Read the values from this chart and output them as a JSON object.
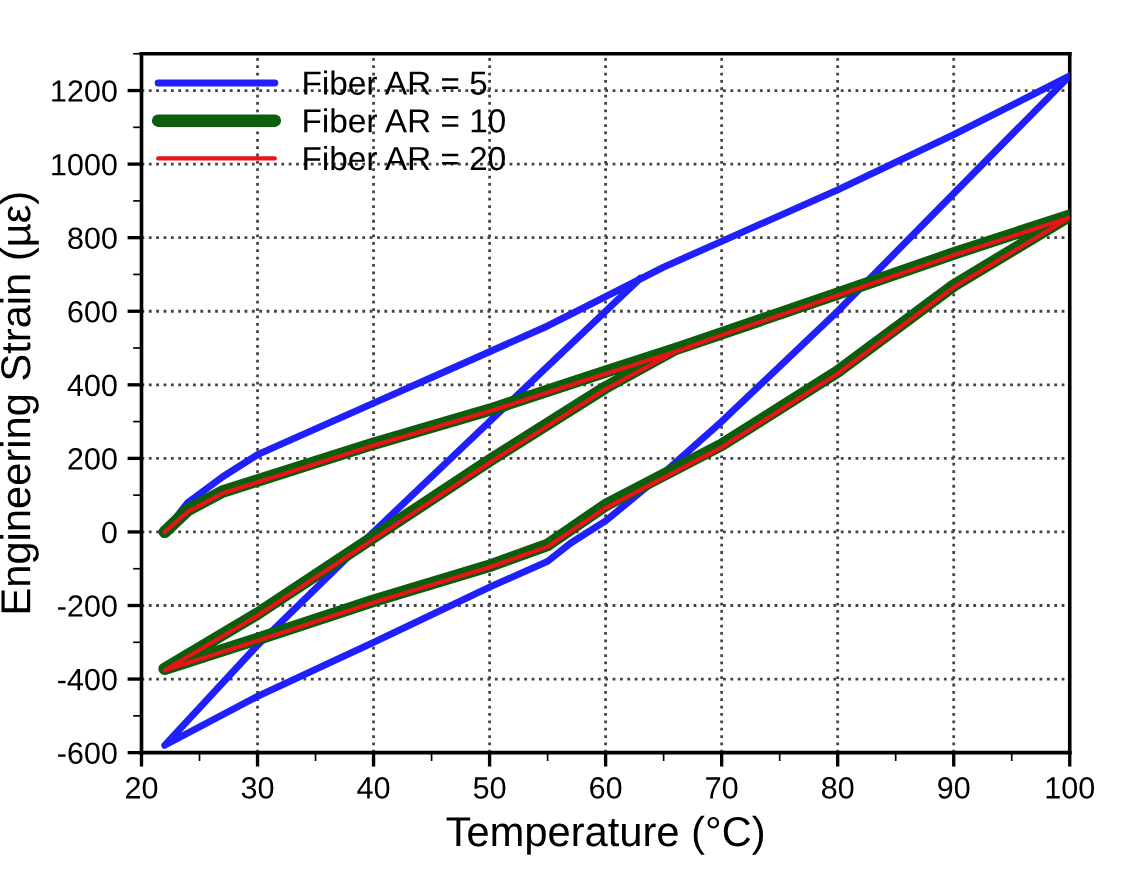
{
  "chart_data": {
    "type": "line",
    "xlabel": "Temperature (°C)",
    "ylabel": "Engineering Strain (µε)",
    "xlim": [
      20,
      100
    ],
    "ylim": [
      -600,
      1300
    ],
    "xticks": [
      20,
      30,
      40,
      50,
      60,
      70,
      80,
      90,
      100
    ],
    "yticks": [
      -600,
      -400,
      -200,
      0,
      200,
      400,
      600,
      800,
      1000,
      1200
    ],
    "grid": true,
    "legend": "top left",
    "marker": "none",
    "line_style": "solid",
    "series": [
      {
        "name": "Fiber AR = 5",
        "color": "#1f1fff",
        "x": [
          22,
          24,
          27,
          30,
          35,
          40,
          45,
          50,
          55,
          60,
          65,
          70,
          80,
          90,
          100,
          90,
          80,
          70,
          65,
          60,
          57,
          55,
          50,
          40,
          30,
          22,
          30,
          40,
          50,
          60,
          63
        ],
        "values": [
          0,
          80,
          150,
          210,
          280,
          350,
          420,
          490,
          560,
          640,
          720,
          790,
          930,
          1080,
          1240,
          920,
          600,
          300,
          160,
          30,
          -30,
          -80,
          -150,
          -300,
          -447,
          -580,
          -308,
          0,
          300,
          600,
          690
        ]
      },
      {
        "name": "Fiber AR = 10",
        "color": "#0b5e0b",
        "x": [
          22,
          24,
          27,
          30,
          40,
          50,
          60,
          66,
          70,
          80,
          90,
          100,
          90,
          80,
          70,
          60,
          55,
          50,
          40,
          30,
          22,
          30,
          40,
          50,
          60,
          66
        ],
        "values": [
          0,
          60,
          110,
          140,
          240,
          332,
          436,
          497,
          540,
          648,
          757,
          860,
          670,
          436,
          237,
          73,
          -35,
          -92,
          -187,
          -291,
          -372,
          -222,
          -14,
          194,
          393,
          497
        ]
      },
      {
        "name": "Fiber AR = 20",
        "color": "#e8141a",
        "x": [
          22,
          24,
          27,
          30,
          40,
          50,
          60,
          66,
          70,
          80,
          90,
          100,
          90,
          80,
          70,
          60,
          55,
          50,
          40,
          30,
          22,
          30,
          40,
          50,
          60,
          66
        ],
        "values": [
          0,
          55,
          105,
          135,
          235,
          328,
          430,
          490,
          535,
          643,
          752,
          855,
          665,
          430,
          230,
          65,
          -40,
          -96,
          -192,
          -296,
          -376,
          -228,
          -20,
          188,
          388,
          490
        ]
      }
    ]
  }
}
